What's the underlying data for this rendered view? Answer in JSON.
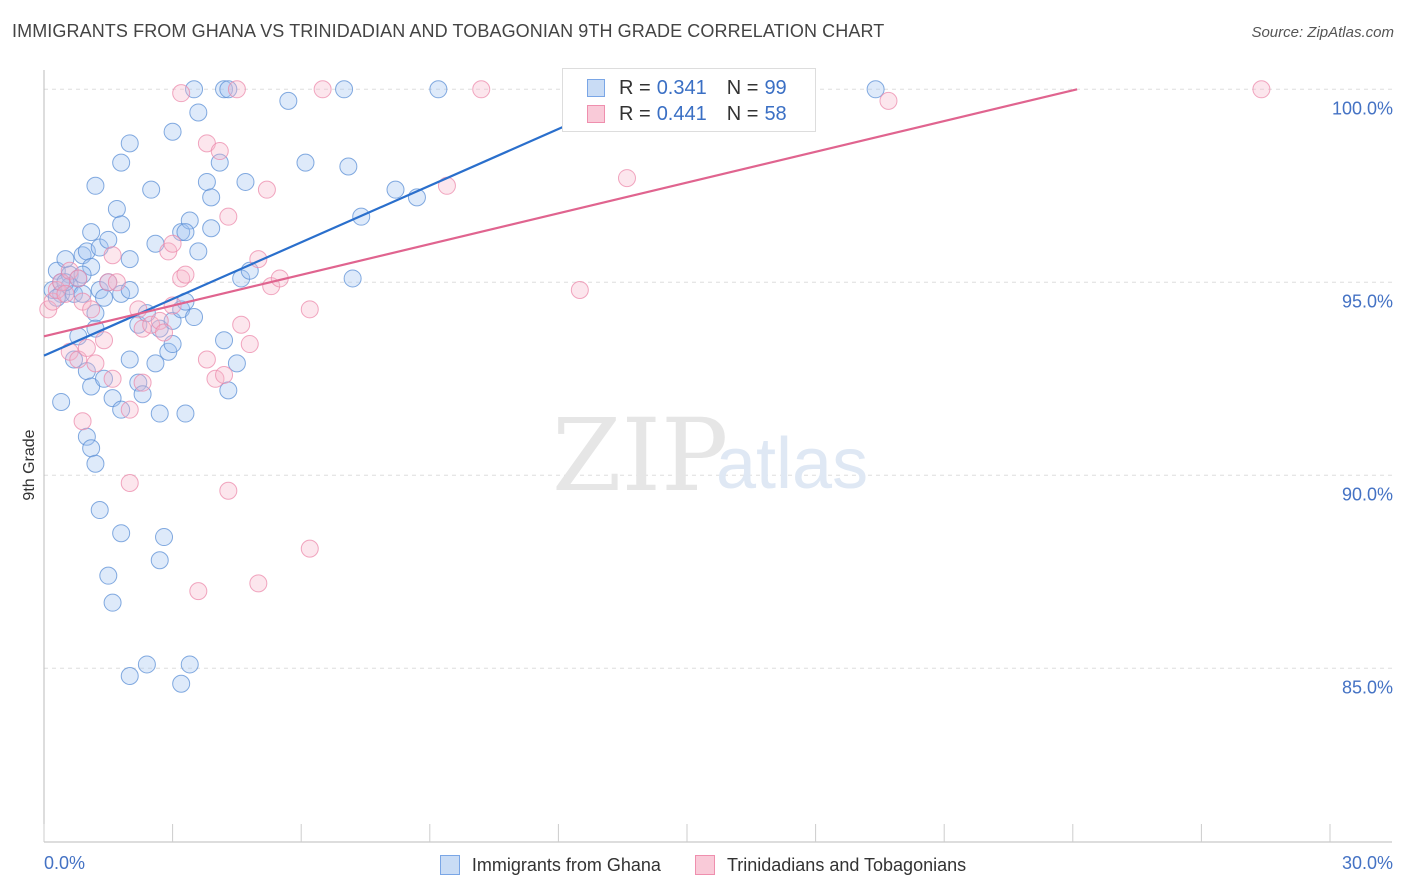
{
  "title": "IMMIGRANTS FROM GHANA VS TRINIDADIAN AND TOBAGONIAN 9TH GRADE CORRELATION CHART",
  "source": "Source: ZipAtlas.com",
  "watermark": {
    "zip": "ZIP",
    "atlas": "atlas"
  },
  "legend": {
    "series": [
      {
        "r_label": "R =",
        "r": "0.341",
        "n_label": "N =",
        "n": "99",
        "color": "#7aa6e6",
        "fill": "#c9dcf5"
      },
      {
        "r_label": "R =",
        "r": "0.441",
        "n_label": "N =",
        "n": "58",
        "color": "#ef8fae",
        "fill": "#f9cad8"
      }
    ]
  },
  "bottom_legend": [
    "Immigrants from Ghana",
    "Trinidadians and Tobagonians"
  ],
  "chart_data": {
    "type": "scatter",
    "title": "IMMIGRANTS FROM GHANA VS TRINIDADIAN AND TOBAGONIAN 9TH GRADE CORRELATION CHART",
    "xlabel": "",
    "ylabel": "9th Grade",
    "xlim": [
      0,
      30
    ],
    "ylim": [
      80.5,
      100.5
    ],
    "x_tick_labels": [
      "0.0%",
      "30.0%"
    ],
    "y_ticks": [
      85,
      90,
      95,
      100
    ],
    "y_tick_labels": [
      "85.0%",
      "90.0%",
      "95.0%",
      "100.0%"
    ],
    "grid": "horizontal dashed",
    "legend_position": "top-center",
    "series": [
      {
        "name": "Immigrants from Ghana",
        "color": "#5b8fd6",
        "trend": {
          "x": [
            0,
            14.1
          ],
          "y": [
            93.1,
            100.0
          ]
        },
        "points": [
          [
            0.2,
            94.8
          ],
          [
            0.3,
            95.3
          ],
          [
            0.4,
            95.0
          ],
          [
            0.4,
            94.7
          ],
          [
            0.5,
            95.6
          ],
          [
            0.6,
            95.2
          ],
          [
            0.6,
            94.9
          ],
          [
            0.7,
            94.7
          ],
          [
            0.8,
            95.1
          ],
          [
            0.9,
            95.7
          ],
          [
            0.9,
            94.7
          ],
          [
            1.0,
            95.8
          ],
          [
            1.1,
            95.4
          ],
          [
            1.2,
            94.2
          ],
          [
            1.3,
            94.8
          ],
          [
            1.4,
            94.6
          ],
          [
            0.4,
            91.9
          ],
          [
            0.7,
            93.0
          ],
          [
            0.8,
            93.6
          ],
          [
            1.0,
            92.7
          ],
          [
            1.1,
            92.3
          ],
          [
            1.0,
            91.0
          ],
          [
            1.1,
            90.7
          ],
          [
            1.2,
            90.3
          ],
          [
            1.3,
            89.1
          ],
          [
            1.5,
            87.4
          ],
          [
            1.6,
            86.7
          ],
          [
            1.8,
            88.5
          ],
          [
            2.0,
            84.8
          ],
          [
            2.4,
            85.1
          ],
          [
            2.7,
            87.8
          ],
          [
            2.8,
            88.4
          ],
          [
            3.2,
            84.6
          ],
          [
            3.4,
            85.1
          ],
          [
            1.2,
            93.8
          ],
          [
            1.4,
            92.5
          ],
          [
            1.6,
            92.0
          ],
          [
            1.8,
            91.7
          ],
          [
            2.0,
            93.0
          ],
          [
            2.2,
            92.4
          ],
          [
            2.3,
            92.1
          ],
          [
            2.6,
            92.9
          ],
          [
            2.7,
            91.6
          ],
          [
            2.9,
            93.2
          ],
          [
            3.0,
            93.4
          ],
          [
            3.3,
            91.6
          ],
          [
            1.8,
            94.7
          ],
          [
            2.0,
            94.8
          ],
          [
            2.2,
            93.9
          ],
          [
            2.4,
            94.2
          ],
          [
            2.7,
            93.8
          ],
          [
            3.0,
            94.0
          ],
          [
            3.2,
            94.3
          ],
          [
            3.3,
            94.5
          ],
          [
            3.5,
            94.1
          ],
          [
            4.2,
            93.5
          ],
          [
            4.5,
            92.9
          ],
          [
            4.3,
            92.2
          ],
          [
            4.6,
            95.1
          ],
          [
            4.8,
            95.3
          ],
          [
            1.1,
            96.3
          ],
          [
            1.3,
            95.9
          ],
          [
            1.5,
            96.1
          ],
          [
            1.7,
            96.9
          ],
          [
            1.8,
            96.5
          ],
          [
            2.0,
            95.6
          ],
          [
            2.6,
            96.0
          ],
          [
            3.2,
            96.3
          ],
          [
            3.4,
            96.6
          ],
          [
            3.6,
            95.8
          ],
          [
            3.9,
            96.4
          ],
          [
            3.3,
            96.3
          ],
          [
            1.2,
            97.5
          ],
          [
            1.8,
            98.1
          ],
          [
            2.0,
            98.6
          ],
          [
            2.5,
            97.4
          ],
          [
            3.0,
            98.9
          ],
          [
            3.6,
            99.4
          ],
          [
            3.8,
            97.6
          ],
          [
            3.9,
            97.2
          ],
          [
            4.1,
            98.1
          ],
          [
            4.7,
            97.6
          ],
          [
            4.2,
            100.0
          ],
          [
            4.3,
            100.0
          ],
          [
            3.5,
            100.0
          ],
          [
            5.7,
            99.7
          ],
          [
            6.1,
            98.1
          ],
          [
            7.0,
            100.0
          ],
          [
            7.1,
            98.0
          ],
          [
            7.4,
            96.7
          ],
          [
            8.2,
            97.4
          ],
          [
            8.7,
            97.2
          ],
          [
            9.2,
            100.0
          ],
          [
            7.2,
            95.1
          ],
          [
            19.4,
            100.0
          ],
          [
            0.3,
            94.6
          ],
          [
            0.5,
            95.0
          ],
          [
            0.9,
            95.2
          ],
          [
            1.5,
            95.0
          ]
        ]
      },
      {
        "name": "Trinidadians and Tobagonians",
        "color": "#ec8aab",
        "trend": {
          "x": [
            0,
            24.1
          ],
          "y": [
            93.6,
            100.0
          ]
        },
        "points": [
          [
            0.1,
            94.3
          ],
          [
            0.2,
            94.5
          ],
          [
            0.3,
            94.8
          ],
          [
            0.4,
            95.0
          ],
          [
            0.5,
            94.7
          ],
          [
            0.6,
            95.3
          ],
          [
            0.8,
            95.1
          ],
          [
            0.9,
            94.5
          ],
          [
            1.1,
            94.3
          ],
          [
            0.6,
            93.2
          ],
          [
            0.8,
            93.0
          ],
          [
            1.0,
            93.3
          ],
          [
            1.2,
            92.9
          ],
          [
            1.4,
            93.5
          ],
          [
            1.6,
            92.5
          ],
          [
            0.9,
            91.4
          ],
          [
            2.0,
            89.8
          ],
          [
            2.0,
            91.7
          ],
          [
            2.3,
            92.4
          ],
          [
            2.3,
            93.8
          ],
          [
            2.5,
            93.9
          ],
          [
            2.7,
            94.0
          ],
          [
            2.8,
            93.7
          ],
          [
            2.2,
            94.3
          ],
          [
            3.0,
            94.4
          ],
          [
            3.2,
            95.1
          ],
          [
            3.6,
            87.0
          ],
          [
            4.0,
            92.5
          ],
          [
            4.2,
            92.6
          ],
          [
            4.3,
            89.6
          ],
          [
            4.6,
            93.9
          ],
          [
            4.8,
            93.4
          ],
          [
            5.0,
            87.2
          ],
          [
            5.3,
            94.9
          ],
          [
            5.5,
            95.1
          ],
          [
            6.2,
            94.3
          ],
          [
            6.2,
            88.1
          ],
          [
            1.5,
            95.0
          ],
          [
            1.6,
            95.7
          ],
          [
            1.7,
            95.0
          ],
          [
            2.9,
            95.8
          ],
          [
            3.0,
            96.0
          ],
          [
            3.3,
            95.2
          ],
          [
            3.8,
            98.6
          ],
          [
            4.1,
            98.4
          ],
          [
            4.3,
            96.7
          ],
          [
            5.0,
            95.6
          ],
          [
            5.2,
            97.4
          ],
          [
            3.2,
            99.9
          ],
          [
            4.5,
            100.0
          ],
          [
            6.5,
            100.0
          ],
          [
            9.4,
            97.5
          ],
          [
            10.2,
            100.0
          ],
          [
            12.5,
            94.8
          ],
          [
            13.6,
            97.7
          ],
          [
            19.7,
            99.7
          ],
          [
            28.4,
            100.0
          ],
          [
            3.8,
            93.0
          ]
        ]
      }
    ]
  }
}
